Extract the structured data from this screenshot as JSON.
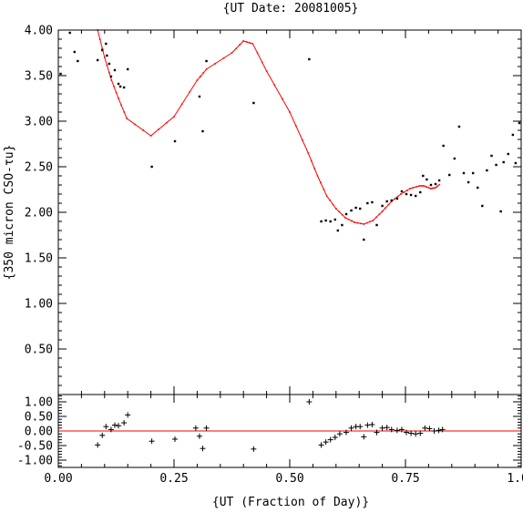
{
  "chart_data": {
    "type": "scatter",
    "title": "{UT Date: 20081005}",
    "xlabel": "{UT (Fraction of Day)}",
    "ylabel": "{350 micron CSO-τu}",
    "xlim": [
      0.0,
      1.0
    ],
    "xticks": [
      "0.00",
      "0.25",
      "0.50",
      "0.75",
      "1.00"
    ],
    "main": {
      "ylim": [
        0.0,
        4.0
      ],
      "yticks": [
        "0.50",
        "1.00",
        "1.50",
        "2.00",
        "2.50",
        "3.00",
        "3.50",
        "4.00"
      ],
      "points": [
        [
          0.005,
          3.52
        ],
        [
          0.025,
          3.97
        ],
        [
          0.035,
          3.76
        ],
        [
          0.042,
          3.66
        ],
        [
          0.085,
          3.67
        ],
        [
          0.095,
          3.78
        ],
        [
          0.103,
          3.85
        ],
        [
          0.105,
          3.72
        ],
        [
          0.11,
          3.63
        ],
        [
          0.114,
          3.49
        ],
        [
          0.122,
          3.56
        ],
        [
          0.13,
          3.41
        ],
        [
          0.134,
          3.38
        ],
        [
          0.142,
          3.37
        ],
        [
          0.15,
          3.57
        ],
        [
          0.202,
          2.5
        ],
        [
          0.252,
          2.78
        ],
        [
          0.305,
          3.27
        ],
        [
          0.312,
          2.89
        ],
        [
          0.32,
          3.66
        ],
        [
          0.422,
          3.2
        ],
        [
          0.542,
          3.68
        ],
        [
          0.568,
          1.9
        ],
        [
          0.578,
          1.91
        ],
        [
          0.588,
          1.9
        ],
        [
          0.598,
          1.92
        ],
        [
          0.604,
          1.8
        ],
        [
          0.613,
          1.86
        ],
        [
          0.622,
          1.98
        ],
        [
          0.633,
          2.02
        ],
        [
          0.643,
          2.05
        ],
        [
          0.652,
          2.04
        ],
        [
          0.66,
          1.7
        ],
        [
          0.668,
          2.1
        ],
        [
          0.678,
          2.11
        ],
        [
          0.688,
          1.86
        ],
        [
          0.7,
          2.07
        ],
        [
          0.71,
          2.12
        ],
        [
          0.72,
          2.13
        ],
        [
          0.732,
          2.15
        ],
        [
          0.742,
          2.23
        ],
        [
          0.752,
          2.2
        ],
        [
          0.762,
          2.19
        ],
        [
          0.772,
          2.18
        ],
        [
          0.782,
          2.22
        ],
        [
          0.788,
          2.4
        ],
        [
          0.796,
          2.36
        ],
        [
          0.805,
          2.3
        ],
        [
          0.815,
          2.31
        ],
        [
          0.823,
          2.35
        ],
        [
          0.832,
          2.73
        ],
        [
          0.845,
          2.41
        ],
        [
          0.856,
          2.59
        ],
        [
          0.866,
          2.94
        ],
        [
          0.876,
          2.43
        ],
        [
          0.886,
          2.33
        ],
        [
          0.896,
          2.43
        ],
        [
          0.906,
          2.27
        ],
        [
          0.916,
          2.07
        ],
        [
          0.926,
          2.46
        ],
        [
          0.936,
          2.62
        ],
        [
          0.946,
          2.52
        ],
        [
          0.956,
          2.01
        ],
        [
          0.962,
          2.55
        ],
        [
          0.972,
          2.64
        ],
        [
          0.982,
          2.85
        ],
        [
          0.988,
          2.54
        ],
        [
          0.996,
          2.98
        ]
      ],
      "fit": [
        [
          0.085,
          4.0
        ],
        [
          0.1,
          3.7
        ],
        [
          0.115,
          3.45
        ],
        [
          0.13,
          3.25
        ],
        [
          0.148,
          3.03
        ],
        [
          0.2,
          2.84
        ],
        [
          0.25,
          3.05
        ],
        [
          0.3,
          3.45
        ],
        [
          0.32,
          3.57
        ],
        [
          0.375,
          3.75
        ],
        [
          0.4,
          3.88
        ],
        [
          0.42,
          3.85
        ],
        [
          0.45,
          3.55
        ],
        [
          0.5,
          3.1
        ],
        [
          0.54,
          2.65
        ],
        [
          0.56,
          2.4
        ],
        [
          0.58,
          2.18
        ],
        [
          0.6,
          2.04
        ],
        [
          0.62,
          1.94
        ],
        [
          0.64,
          1.89
        ],
        [
          0.66,
          1.87
        ],
        [
          0.68,
          1.91
        ],
        [
          0.7,
          2.01
        ],
        [
          0.72,
          2.12
        ],
        [
          0.74,
          2.2
        ],
        [
          0.76,
          2.26
        ],
        [
          0.78,
          2.29
        ],
        [
          0.79,
          2.29
        ],
        [
          0.805,
          2.26
        ],
        [
          0.815,
          2.27
        ],
        [
          0.825,
          2.31
        ]
      ]
    },
    "residuals": {
      "ylim": [
        -1.25,
        1.25
      ],
      "yticks": [
        "-1.00",
        "-0.50",
        "0.00",
        "0.50",
        "1.00"
      ],
      "zero_line": 0.0,
      "points": [
        [
          0.085,
          -0.48
        ],
        [
          0.095,
          -0.15
        ],
        [
          0.103,
          0.15
        ],
        [
          0.114,
          0.05
        ],
        [
          0.122,
          0.2
        ],
        [
          0.13,
          0.18
        ],
        [
          0.142,
          0.28
        ],
        [
          0.15,
          0.55
        ],
        [
          0.202,
          -0.35
        ],
        [
          0.252,
          -0.28
        ],
        [
          0.297,
          0.1
        ],
        [
          0.305,
          -0.18
        ],
        [
          0.312,
          -0.6
        ],
        [
          0.32,
          0.1
        ],
        [
          0.422,
          -0.62
        ],
        [
          0.542,
          1.0
        ],
        [
          0.568,
          -0.48
        ],
        [
          0.578,
          -0.38
        ],
        [
          0.588,
          -0.3
        ],
        [
          0.598,
          -0.22
        ],
        [
          0.608,
          -0.1
        ],
        [
          0.622,
          -0.05
        ],
        [
          0.633,
          0.1
        ],
        [
          0.643,
          0.15
        ],
        [
          0.652,
          0.15
        ],
        [
          0.66,
          -0.2
        ],
        [
          0.668,
          0.2
        ],
        [
          0.678,
          0.22
        ],
        [
          0.688,
          -0.05
        ],
        [
          0.7,
          0.1
        ],
        [
          0.71,
          0.12
        ],
        [
          0.72,
          0.05
        ],
        [
          0.732,
          0.02
        ],
        [
          0.742,
          0.05
        ],
        [
          0.752,
          -0.05
        ],
        [
          0.762,
          -0.08
        ],
        [
          0.772,
          -0.1
        ],
        [
          0.782,
          -0.08
        ],
        [
          0.792,
          0.1
        ],
        [
          0.802,
          0.08
        ],
        [
          0.812,
          0.0
        ],
        [
          0.822,
          0.02
        ],
        [
          0.83,
          0.05
        ]
      ]
    },
    "colors": {
      "points": "#000000",
      "fit": "#ff0000",
      "zero_line": "#ff0000",
      "axes": "#000000"
    }
  }
}
